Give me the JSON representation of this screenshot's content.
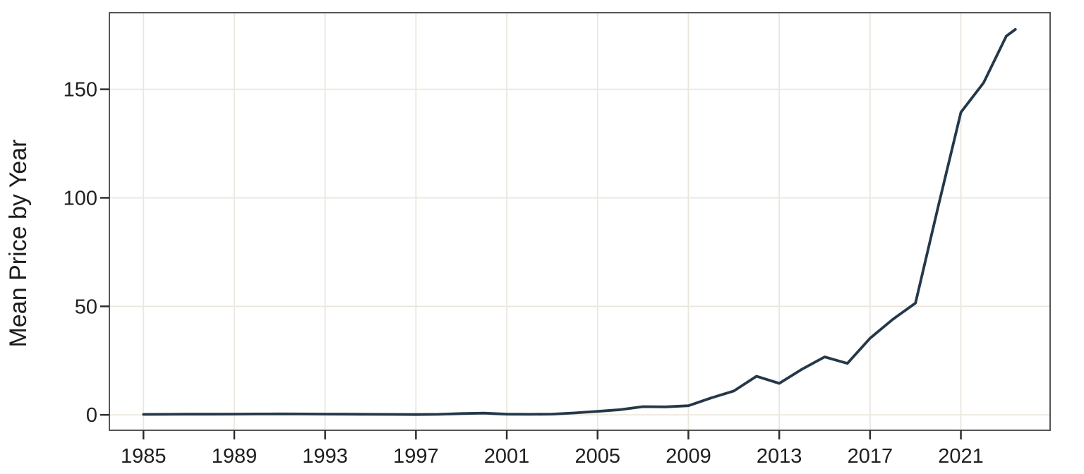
{
  "chart_data": {
    "type": "line",
    "title": "",
    "xlabel": "",
    "ylabel": "Mean Price by Year",
    "series": [
      {
        "name": "mean-price",
        "x": [
          1985,
          1986,
          1987,
          1988,
          1989,
          1990,
          1991,
          1992,
          1993,
          1994,
          1995,
          1996,
          1997,
          1998,
          1999,
          2000,
          2001,
          2002,
          2003,
          2004,
          2005,
          2006,
          2007,
          2008,
          2009,
          2010,
          2011,
          2012,
          2013,
          2014,
          2015,
          2016,
          2017,
          2018,
          2019,
          2020,
          2021,
          2022,
          2023,
          2023.4
        ],
        "y": [
          0.2,
          0.25,
          0.3,
          0.3,
          0.35,
          0.4,
          0.45,
          0.4,
          0.35,
          0.3,
          0.25,
          0.2,
          0.15,
          0.25,
          0.6,
          0.8,
          0.3,
          0.25,
          0.35,
          0.9,
          1.6,
          2.4,
          3.8,
          3.7,
          4.2,
          7.8,
          11.0,
          17.8,
          14.5,
          21.0,
          26.7,
          23.7,
          35.3,
          44.0,
          51.5,
          96.0,
          139.4,
          153.0,
          174.5,
          177.6
        ]
      }
    ],
    "x_ticks": [
      1985,
      1989,
      1993,
      1997,
      2001,
      2005,
      2009,
      2013,
      2017,
      2021
    ],
    "y_ticks": [
      0,
      50,
      100,
      150
    ],
    "xlim": [
      1983.5,
      2024.93
    ],
    "ylim": [
      -7.1,
      185.3
    ],
    "grid": true,
    "legend_position": "none",
    "colors": {
      "line": "#243849",
      "grid": "#ece7dd",
      "border": "#565656",
      "tick": "#2e2e2e",
      "text": "#1f1f1f",
      "background": "#ffffff"
    }
  }
}
